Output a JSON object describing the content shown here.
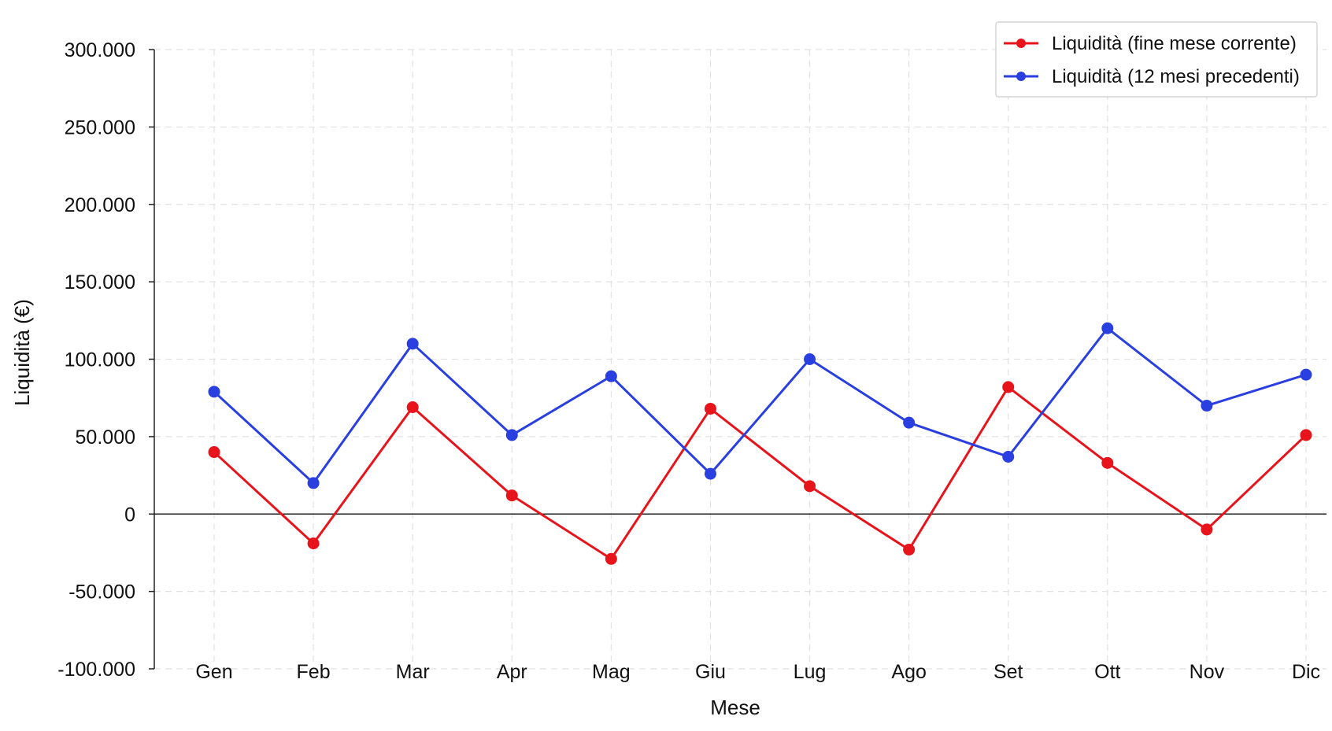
{
  "chart_data": {
    "type": "line",
    "categories": [
      "Gen",
      "Feb",
      "Mar",
      "Apr",
      "Mag",
      "Giu",
      "Lug",
      "Ago",
      "Set",
      "Ott",
      "Nov",
      "Dic"
    ],
    "series": [
      {
        "name": "Liquidità (fine mese corrente)",
        "color": "#e8141b",
        "values": [
          40000,
          -19000,
          69000,
          12000,
          -29000,
          68000,
          18000,
          -23000,
          82000,
          33000,
          -10000,
          51000
        ]
      },
      {
        "name": "Liquidità (12 mesi precedenti)",
        "color": "#2a3fe0",
        "values": [
          79000,
          20000,
          110000,
          51000,
          89000,
          26000,
          100000,
          59000,
          37000,
          120000,
          70000,
          90000
        ]
      }
    ],
    "xlabel": "Mese",
    "ylabel": "Liquidità (€)",
    "ylim": [
      -100000,
      300000
    ],
    "yticks": [
      -100000,
      -50000,
      0,
      50000,
      100000,
      150000,
      200000,
      250000,
      300000
    ],
    "ytick_labels": [
      "-100.000",
      "-50.000",
      "0",
      "50.000",
      "100.000",
      "150.000",
      "200.000",
      "250.000",
      "300.000"
    ],
    "grid": true,
    "legend_position": "top-right"
  }
}
